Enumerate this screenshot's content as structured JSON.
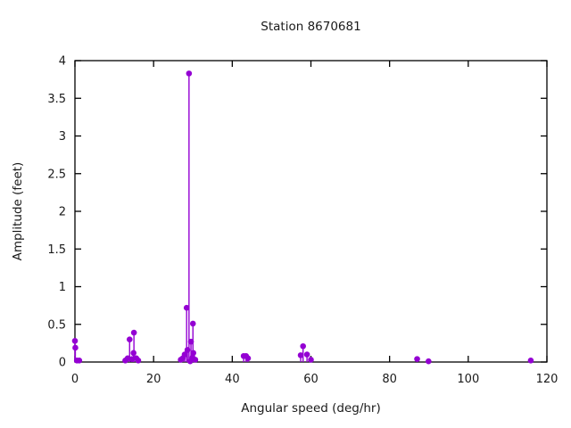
{
  "figure": {
    "background": "#ffffff",
    "frame_color": "#000000",
    "text_color": "#1a1a1a"
  },
  "chart_data": {
    "type": "scatter",
    "style": "impulses-with-points",
    "title": "Station 8670681",
    "xlabel": "Angular speed (deg/hr)",
    "ylabel": "Amplitude (feet)",
    "xlim": [
      0,
      120
    ],
    "ylim": [
      0,
      4
    ],
    "xticks": [
      0,
      20,
      40,
      60,
      80,
      100,
      120
    ],
    "yticks": [
      0,
      0.5,
      1,
      1.5,
      2,
      2.5,
      3,
      3.5,
      4
    ],
    "grid": false,
    "legend": null,
    "marker_color": "#9400D3",
    "points": [
      {
        "x": 0.0,
        "y": 0.28
      },
      {
        "x": 0.1,
        "y": 0.19
      },
      {
        "x": 0.5,
        "y": 0.02
      },
      {
        "x": 1.1,
        "y": 0.02
      },
      {
        "x": 12.8,
        "y": 0.02
      },
      {
        "x": 13.4,
        "y": 0.05
      },
      {
        "x": 13.9,
        "y": 0.3
      },
      {
        "x": 14.5,
        "y": 0.04
      },
      {
        "x": 14.9,
        "y": 0.12
      },
      {
        "x": 15.0,
        "y": 0.39
      },
      {
        "x": 15.6,
        "y": 0.05
      },
      {
        "x": 16.1,
        "y": 0.02
      },
      {
        "x": 26.9,
        "y": 0.03
      },
      {
        "x": 27.4,
        "y": 0.05
      },
      {
        "x": 27.9,
        "y": 0.1
      },
      {
        "x": 28.4,
        "y": 0.72
      },
      {
        "x": 28.6,
        "y": 0.16
      },
      {
        "x": 29.0,
        "y": 3.83
      },
      {
        "x": 29.3,
        "y": 0.01
      },
      {
        "x": 29.5,
        "y": 0.27
      },
      {
        "x": 29.9,
        "y": 0.06
      },
      {
        "x": 30.0,
        "y": 0.51
      },
      {
        "x": 30.1,
        "y": 0.12
      },
      {
        "x": 30.6,
        "y": 0.03
      },
      {
        "x": 42.9,
        "y": 0.08
      },
      {
        "x": 43.5,
        "y": 0.08
      },
      {
        "x": 44.0,
        "y": 0.05
      },
      {
        "x": 57.4,
        "y": 0.09
      },
      {
        "x": 58.0,
        "y": 0.21
      },
      {
        "x": 59.0,
        "y": 0.1
      },
      {
        "x": 60.0,
        "y": 0.03
      },
      {
        "x": 87.0,
        "y": 0.04
      },
      {
        "x": 89.9,
        "y": 0.01
      },
      {
        "x": 115.9,
        "y": 0.02
      }
    ]
  }
}
